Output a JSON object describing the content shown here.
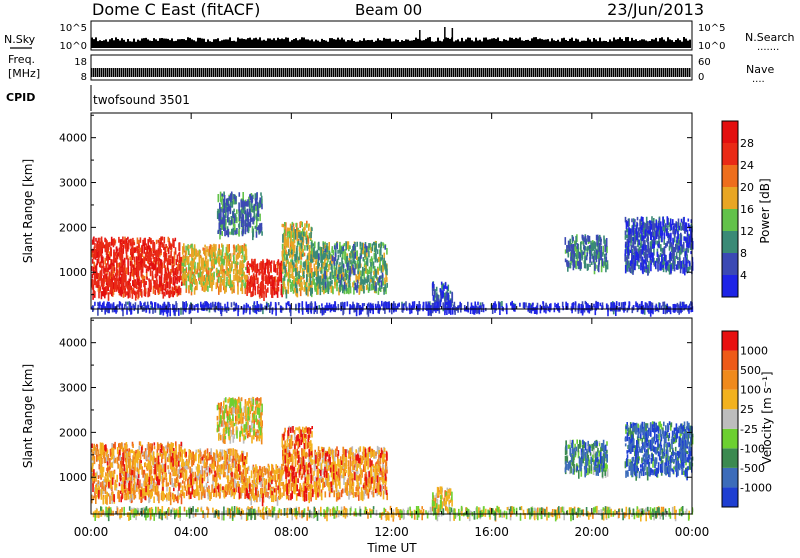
{
  "header": {
    "title": "Dome C East (fitACF)",
    "beam": "Beam 00",
    "date": "23/Jun/2013"
  },
  "sky_panel": {
    "left_label": "N.Sky",
    "right_label": "N.Search",
    "right_dots": ".......",
    "ticks_left": [
      "10^5",
      "10^0"
    ],
    "ticks_right": [
      "10^5",
      "10^0"
    ]
  },
  "freq_panel": {
    "left_label_1": "Freq.",
    "left_label_2": "[MHz]",
    "right_label": "Nave",
    "right_dots": "....",
    "ticks_left": [
      "18",
      "8"
    ],
    "ticks_right": [
      "60",
      "0"
    ]
  },
  "cpid_panel": {
    "label": "CPID",
    "program": "twofsound 3501"
  },
  "x_axis": {
    "label": "Time UT",
    "ticks": [
      "00:00",
      "04:00",
      "08:00",
      "12:00",
      "16:00",
      "20:00",
      "00:00"
    ]
  },
  "chart_data": [
    {
      "type": "heatmap",
      "name": "power",
      "ylabel": "Slant Range [km]",
      "yticks": [
        1000,
        2000,
        3000,
        4000
      ],
      "ylim": [
        180,
        4550
      ],
      "xlim_hours": [
        0,
        24
      ],
      "colorbar": {
        "label": "Power [dB]",
        "ticks": [
          "4",
          "8",
          "12",
          "16",
          "20",
          "24",
          "28"
        ],
        "colors": [
          "#1e24e6",
          "#3b49b4",
          "#3a8a76",
          "#62c24a",
          "#e8a624",
          "#ee6e1c",
          "#e92a16",
          "#e30f0f"
        ]
      },
      "regions": [
        {
          "t0": 0.0,
          "t1": 3.6,
          "r0": 550,
          "r1": 1800,
          "intensity": 0.85
        },
        {
          "t0": 3.6,
          "t1": 6.2,
          "r0": 650,
          "r1": 1650,
          "intensity": 0.55
        },
        {
          "t0": 6.2,
          "t1": 7.6,
          "r0": 550,
          "r1": 1300,
          "intensity": 0.9
        },
        {
          "t0": 7.6,
          "t1": 8.8,
          "r0": 600,
          "r1": 2150,
          "intensity": 0.5
        },
        {
          "t0": 8.8,
          "t1": 11.8,
          "r0": 650,
          "r1": 1700,
          "intensity": 0.4
        },
        {
          "t0": 5.0,
          "t1": 6.8,
          "r0": 1900,
          "r1": 2800,
          "intensity": 0.3
        },
        {
          "t0": 18.9,
          "t1": 20.6,
          "r0": 1150,
          "r1": 1850,
          "intensity": 0.3
        },
        {
          "t0": 21.3,
          "t1": 24.0,
          "r0": 1100,
          "r1": 2250,
          "intensity": 0.2
        },
        {
          "t0": 13.6,
          "t1": 14.4,
          "r0": 300,
          "r1": 800,
          "intensity": 0.2
        },
        {
          "t0": 0.0,
          "t1": 24.0,
          "r0": 200,
          "r1": 360,
          "intensity": 0.1
        }
      ]
    },
    {
      "type": "heatmap",
      "name": "velocity",
      "ylabel": "Slant Range [km]",
      "yticks": [
        1000,
        2000,
        3000,
        4000
      ],
      "ylim": [
        180,
        4550
      ],
      "xlim_hours": [
        0,
        24
      ],
      "colorbar": {
        "label": "Velocity [m s⁻¹]",
        "ticks": [
          "1000",
          "500",
          "100",
          "25",
          "-25",
          "-100",
          "-500",
          "-1000"
        ],
        "colors": [
          "#1f3fd2",
          "#3c6cba",
          "#3b8a50",
          "#6cd030",
          "#bdbdbd",
          "#f3b21e",
          "#f08a1c",
          "#ee5a18",
          "#e81010"
        ]
      },
      "regions": [
        {
          "t0": 0.0,
          "t1": 3.6,
          "r0": 550,
          "r1": 1800,
          "intensity": 0.7
        },
        {
          "t0": 3.6,
          "t1": 6.2,
          "r0": 650,
          "r1": 1650,
          "intensity": 0.7
        },
        {
          "t0": 6.2,
          "t1": 7.6,
          "r0": 550,
          "r1": 1300,
          "intensity": 0.7
        },
        {
          "t0": 7.6,
          "t1": 8.8,
          "r0": 600,
          "r1": 2150,
          "intensity": 0.75
        },
        {
          "t0": 8.8,
          "t1": 11.8,
          "r0": 650,
          "r1": 1700,
          "intensity": 0.7
        },
        {
          "t0": 5.0,
          "t1": 6.8,
          "r0": 1900,
          "r1": 2800,
          "intensity": 0.6
        },
        {
          "t0": 18.9,
          "t1": 20.6,
          "r0": 1150,
          "r1": 1850,
          "intensity": 0.3
        },
        {
          "t0": 21.3,
          "t1": 24.0,
          "r0": 1100,
          "r1": 2250,
          "intensity": 0.15
        },
        {
          "t0": 13.6,
          "t1": 14.4,
          "r0": 300,
          "r1": 800,
          "intensity": 0.6
        },
        {
          "t0": 0.0,
          "t1": 24.0,
          "r0": 200,
          "r1": 360,
          "intensity": 0.5
        }
      ]
    }
  ]
}
